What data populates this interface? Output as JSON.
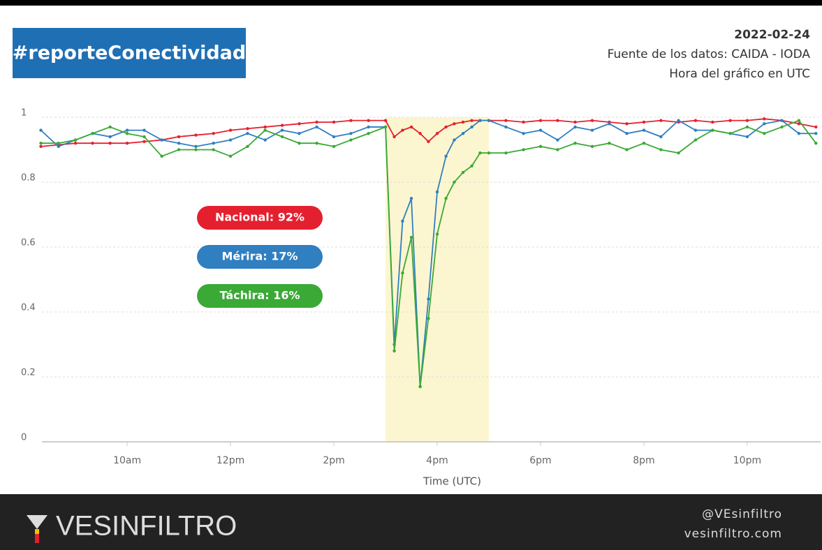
{
  "header": {
    "tag": "#reporteConectividad",
    "date": "2022-02-24",
    "source": "Fuente de los datos: CAIDA - IODA",
    "note": "Hora del gráfico en UTC"
  },
  "chart_data": {
    "type": "line",
    "x": [
      8.33,
      8.67,
      9,
      9.33,
      9.67,
      10,
      10.33,
      10.67,
      11,
      11.33,
      11.67,
      12,
      12.33,
      12.67,
      13,
      13.33,
      13.67,
      14,
      14.33,
      14.67,
      15,
      15.17,
      15.33,
      15.5,
      15.67,
      15.83,
      16,
      16.17,
      16.33,
      16.5,
      16.67,
      16.83,
      17,
      17.33,
      17.67,
      18,
      18.33,
      18.67,
      19,
      19.33,
      19.67,
      20,
      20.33,
      20.67,
      21,
      21.33,
      21.67,
      22,
      22.33,
      22.67,
      23,
      23.33
    ],
    "series": [
      {
        "name": "Nacional: 92%",
        "color": "#e5202e",
        "values": [
          0.91,
          0.915,
          0.92,
          0.92,
          0.92,
          0.92,
          0.925,
          0.93,
          0.94,
          0.945,
          0.95,
          0.96,
          0.965,
          0.97,
          0.975,
          0.98,
          0.985,
          0.985,
          0.99,
          0.99,
          0.99,
          0.94,
          0.96,
          0.97,
          0.95,
          0.925,
          0.95,
          0.97,
          0.98,
          0.985,
          0.99,
          0.99,
          0.99,
          0.99,
          0.985,
          0.99,
          0.99,
          0.985,
          0.99,
          0.985,
          0.98,
          0.985,
          0.99,
          0.985,
          0.99,
          0.985,
          0.99,
          0.99,
          0.995,
          0.99,
          0.98,
          0.97
        ]
      },
      {
        "name": "Mérira: 17%",
        "color": "#2f7fc1",
        "values": [
          0.96,
          0.91,
          0.93,
          0.95,
          0.94,
          0.96,
          0.96,
          0.93,
          0.92,
          0.91,
          0.92,
          0.93,
          0.95,
          0.93,
          0.96,
          0.95,
          0.97,
          0.94,
          0.95,
          0.97,
          0.97,
          0.3,
          0.68,
          0.75,
          0.17,
          0.44,
          0.77,
          0.88,
          0.93,
          0.95,
          0.97,
          0.99,
          0.99,
          0.97,
          0.95,
          0.96,
          0.93,
          0.97,
          0.96,
          0.98,
          0.95,
          0.96,
          0.94,
          0.99,
          0.96,
          0.96,
          0.95,
          0.94,
          0.98,
          0.99,
          0.95,
          0.95
        ]
      },
      {
        "name": "Táchira: 16%",
        "color": "#3aa935",
        "values": [
          0.92,
          0.92,
          0.93,
          0.95,
          0.97,
          0.95,
          0.94,
          0.88,
          0.9,
          0.9,
          0.9,
          0.88,
          0.91,
          0.96,
          0.94,
          0.92,
          0.92,
          0.91,
          0.93,
          0.95,
          0.97,
          0.28,
          0.52,
          0.63,
          0.17,
          0.38,
          0.64,
          0.75,
          0.8,
          0.83,
          0.85,
          0.89,
          0.89,
          0.89,
          0.9,
          0.91,
          0.9,
          0.92,
          0.91,
          0.92,
          0.9,
          0.92,
          0.9,
          0.89,
          0.93,
          0.96,
          0.95,
          0.97,
          0.95,
          0.97,
          0.99,
          0.92
        ]
      }
    ],
    "xlabel": "Time (UTC)",
    "xlim": [
      8.35,
      23.42
    ],
    "xticks": [
      {
        "value": 10,
        "label": "10am"
      },
      {
        "value": 12,
        "label": "12pm"
      },
      {
        "value": 14,
        "label": "2pm"
      },
      {
        "value": 16,
        "label": "4pm"
      },
      {
        "value": 18,
        "label": "6pm"
      },
      {
        "value": 20,
        "label": "8pm"
      },
      {
        "value": 22,
        "label": "10pm"
      }
    ],
    "ylim": [
      0,
      1
    ],
    "yticks": [
      0,
      0.2,
      0.4,
      0.6,
      0.8,
      1
    ],
    "highlight": [
      15,
      17
    ],
    "grid": true
  },
  "footer": {
    "brand": "VESINFILTRO",
    "handle": "@VEsinfiltro",
    "site": "vesinfiltro.com"
  }
}
